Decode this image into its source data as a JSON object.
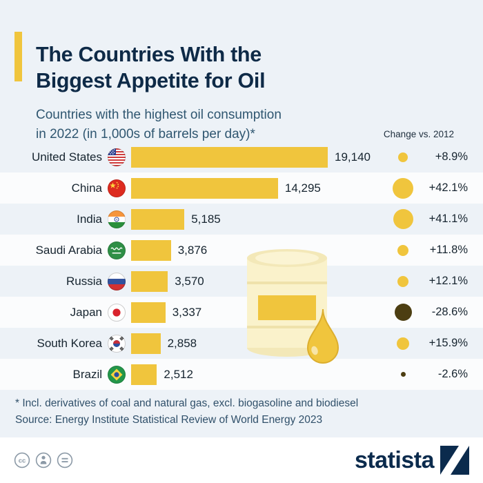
{
  "header": {
    "title_line1": "The Countries With the",
    "title_line2": "Biggest Appetite for Oil",
    "subtitle_line1": "Countries with the highest oil consumption",
    "subtitle_line2": "in 2022 (in 1,000s of barrels per day)*",
    "change_label": "Change vs. 2012"
  },
  "chart_data": {
    "type": "bar",
    "orientation": "horizontal",
    "title": "The Countries With the Biggest Appetite for Oil",
    "subtitle": "Countries with the highest oil consumption in 2022 (in 1,000s of barrels per day)*",
    "unit": "1,000s of barrels per day",
    "categories": [
      "United States",
      "China",
      "India",
      "Saudi Arabia",
      "Russia",
      "Japan",
      "South Korea",
      "Brazil"
    ],
    "values": [
      19140,
      14295,
      5185,
      3876,
      3570,
      3337,
      2858,
      2512
    ],
    "value_labels": [
      "19,140",
      "14,295",
      "5,185",
      "3,876",
      "3,570",
      "3,337",
      "2,858",
      "2,512"
    ],
    "change_vs_2012": [
      "+8.9%",
      "+42.1%",
      "+41.1%",
      "+11.8%",
      "+12.1%",
      "-28.6%",
      "+15.9%",
      "-2.6%"
    ],
    "change_values": [
      8.9,
      42.1,
      41.1,
      11.8,
      12.1,
      -28.6,
      15.9,
      -2.6
    ],
    "flags": [
      "us",
      "cn",
      "in",
      "sa",
      "ru",
      "jp",
      "kr",
      "br"
    ],
    "xlim": [
      0,
      20000
    ],
    "grid": false,
    "legend": false
  },
  "footer": {
    "footnote": "* Incl. derivatives of coal and natural gas, excl. biogasoline and biodiesel",
    "source": "Source: Energy Institute Statistical Review of World Energy 2023"
  },
  "branding": {
    "logo_text": "statista",
    "license_icons": [
      "cc-icon",
      "attribution-person-icon",
      "equals-icon"
    ]
  },
  "colors": {
    "background": "#edf2f7",
    "row_alt": "#ffffff",
    "bar": "#f0c53d",
    "accent_bar": "#f0c53d",
    "dot_positive": "#f0c53d",
    "dot_negative": "#4c3e12",
    "title": "#0e2a47",
    "subtitle": "#2f5670",
    "logo_navy": "#0b2b4d"
  }
}
